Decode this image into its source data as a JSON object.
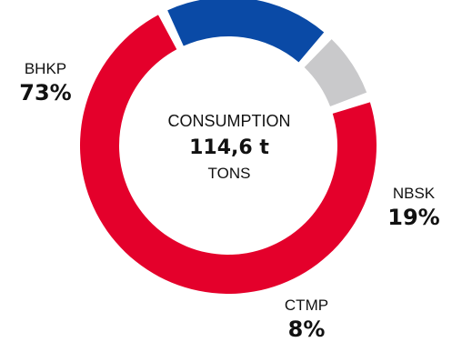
{
  "chart_data": {
    "type": "pie",
    "subtype": "donut",
    "center": {
      "label": "CONSUMPTION",
      "value": "114,6 t",
      "unit": "TONS"
    },
    "slices": [
      {
        "label": "BHKP",
        "value": 73,
        "display": "73%",
        "color": "#e4002b"
      },
      {
        "label": "NBSK",
        "value": 19,
        "display": "19%",
        "color": "#0a4aa6"
      },
      {
        "label": "CTMP",
        "value": 8,
        "display": "8%",
        "color": "#c9c9cb"
      }
    ]
  }
}
